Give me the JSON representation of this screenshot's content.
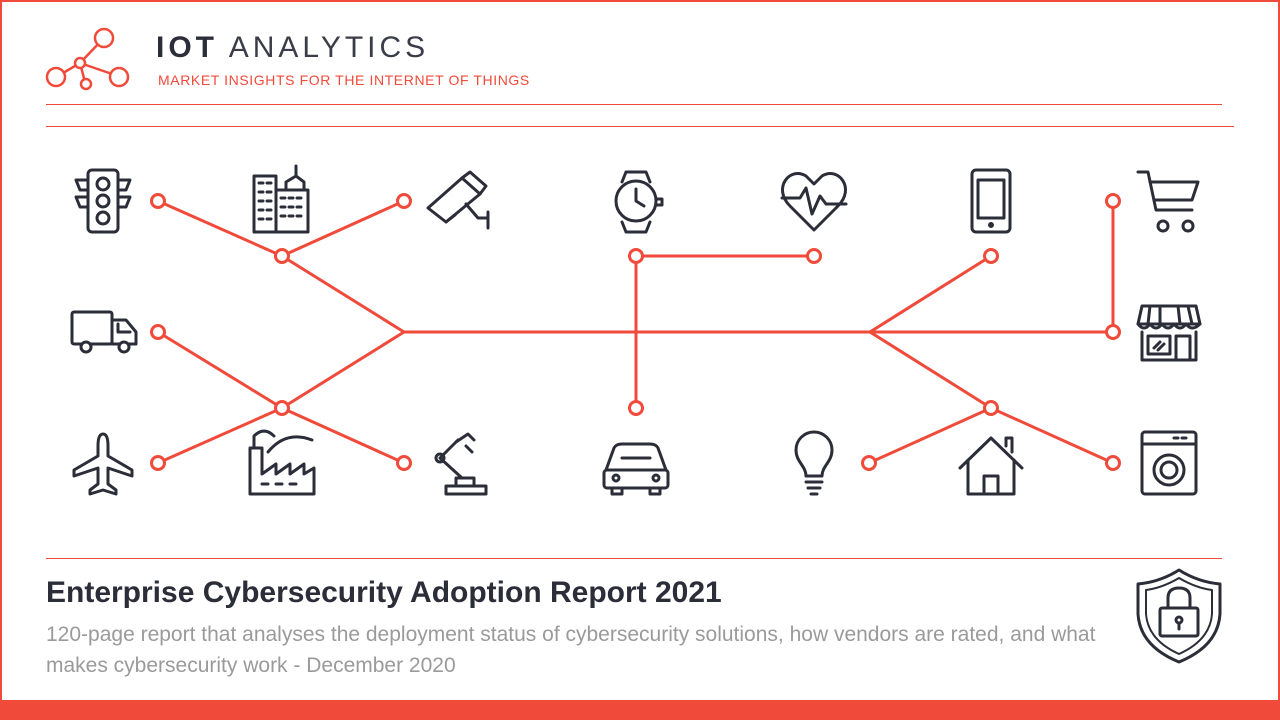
{
  "header": {
    "brand_bold": "IOT",
    "brand_light": "ANALYTICS",
    "tagline": "MARKET INSIGHTS FOR THE INTERNET OF THINGS"
  },
  "report": {
    "title": "Enterprise Cybersecurity Adoption Report 2021",
    "subtitle": "120-page report that analyses the deployment status of cybersecurity solutions, how vendors are rated, and what makes cybersecurity work - December 2020"
  },
  "colors": {
    "accent": "#f04a3a",
    "icon": "#2b2e39",
    "subtitle": "#9a9a9a"
  },
  "icons": [
    "traffic-light-icon",
    "buildings-icon",
    "security-camera-icon",
    "smartwatch-icon",
    "heart-rate-icon",
    "smartphone-icon",
    "shopping-cart-icon",
    "truck-icon",
    "store-icon",
    "airplane-icon",
    "factory-icon",
    "robot-arm-icon",
    "car-icon",
    "light-bulb-icon",
    "house-icon",
    "washing-machine-icon",
    "shield-lock-icon",
    "network-logo-icon"
  ]
}
